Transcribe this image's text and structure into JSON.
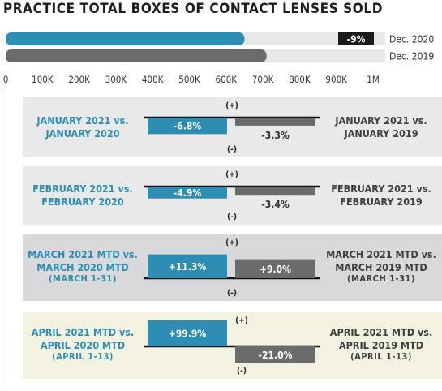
{
  "title": "PRACTICE TOTAL BOXES OF CONTACT LENSES SOLD",
  "colors": {
    "blue": "#2d8db3",
    "gray": "#6b6b6b",
    "panel_gray": "#e9e9ea",
    "panel_dark": "#d9d9db",
    "panel_cream": "#f3f2e1",
    "track": "#e8e8e8",
    "black": "#1a1a1a"
  },
  "chart_data": [
    {
      "type": "bar",
      "title": "PRACTICE TOTAL BOXES OF CONTACT LENSES SOLD",
      "orientation": "horizontal",
      "series": [
        {
          "name": "Dec. 2020",
          "values": [
            650000
          ],
          "color": "#2d8db3"
        },
        {
          "name": "Dec. 2019",
          "values": [
            710000
          ],
          "color": "#6b6b6b"
        }
      ],
      "change_label": "-9%",
      "xlim": [
        0,
        1000000
      ],
      "ticks": [
        "0",
        "100K",
        "200K",
        "300K",
        "400K",
        "500K",
        "600K",
        "700K",
        "800K",
        "900K",
        "1M"
      ],
      "tick_values": [
        0,
        100000,
        200000,
        300000,
        400000,
        500000,
        600000,
        700000,
        800000,
        900000,
        1000000
      ]
    },
    {
      "type": "bar",
      "plus_label": "(+)",
      "minus_label": "(-)",
      "panels": [
        {
          "left": [
            "JANUARY 2021 vs.",
            "JANUARY 2020"
          ],
          "right": [
            "JANUARY 2021 vs.",
            "JANUARY 2019"
          ],
          "sub_left": "",
          "sub_right": "",
          "values": [
            -6.8,
            -3.3
          ],
          "labels": [
            "-6.8%",
            "-3.3%"
          ]
        },
        {
          "left": [
            "FEBRUARY 2021 vs.",
            "FEBRUARY 2020"
          ],
          "right": [
            "FEBRUARY 2021 vs.",
            "FEBRUARY 2019"
          ],
          "sub_left": "",
          "sub_right": "",
          "values": [
            -4.9,
            -3.4
          ],
          "labels": [
            "-4.9%",
            "-3.4%"
          ]
        },
        {
          "left": [
            "MARCH 2021 MTD vs.",
            "MARCH 2020 MTD"
          ],
          "right": [
            "MARCH 2021 MTD vs.",
            "MARCH 2019 MTD"
          ],
          "sub_left": "(MARCH 1-31)",
          "sub_right": "(MARCH 1-31)",
          "values": [
            11.3,
            9.0
          ],
          "labels": [
            "+11.3%",
            "+9.0%"
          ]
        },
        {
          "left": [
            "APRIL 2021 MTD vs.",
            "APRIL 2020 MTD"
          ],
          "right": [
            "APRIL 2021 MTD vs.",
            "APRIL 2019 MTD"
          ],
          "sub_left": "(APRIL 1-13)",
          "sub_right": "(APRIL 1-13)",
          "values": [
            99.9,
            -21.0
          ],
          "labels": [
            "+99.9%",
            "-21.0%"
          ]
        }
      ]
    }
  ]
}
